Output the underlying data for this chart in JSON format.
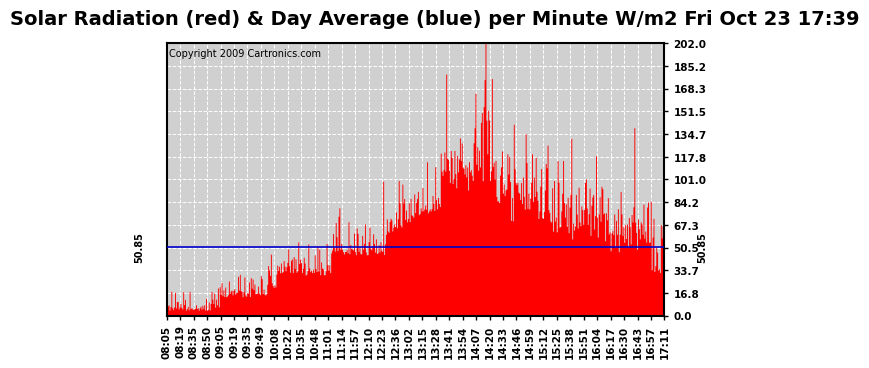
{
  "title": "Solar Radiation (red) & Day Average (blue) per Minute W/m2 Fri Oct 23 17:39",
  "copyright": "Copyright 2009 Cartronics.com",
  "y_max": 202.0,
  "y_min": 0.0,
  "y_ticks": [
    0.0,
    16.8,
    33.7,
    50.5,
    67.3,
    84.2,
    101.0,
    117.8,
    134.7,
    151.5,
    168.3,
    185.2,
    202.0
  ],
  "blue_line_value": 50.85,
  "bar_color": "#ff0000",
  "line_color": "#0000cc",
  "background_color": "#ffffff",
  "plot_bg_color": "#d8d8d8",
  "x_labels": [
    "08:05",
    "08:19",
    "08:35",
    "08:50",
    "09:05",
    "09:19",
    "09:35",
    "09:49",
    "10:08",
    "10:22",
    "10:35",
    "10:48",
    "11:01",
    "11:14",
    "11:57",
    "12:10",
    "12:23",
    "12:36",
    "13:02",
    "13:15",
    "13:28",
    "13:41",
    "13:54",
    "14:07",
    "14:20",
    "14:33",
    "14:46",
    "14:59",
    "15:12",
    "15:25",
    "15:38",
    "15:51",
    "16:04",
    "16:17",
    "16:30",
    "16:43",
    "16:57",
    "17:11"
  ],
  "title_fontsize": 14,
  "axis_fontsize": 7.5,
  "copyright_fontsize": 7
}
